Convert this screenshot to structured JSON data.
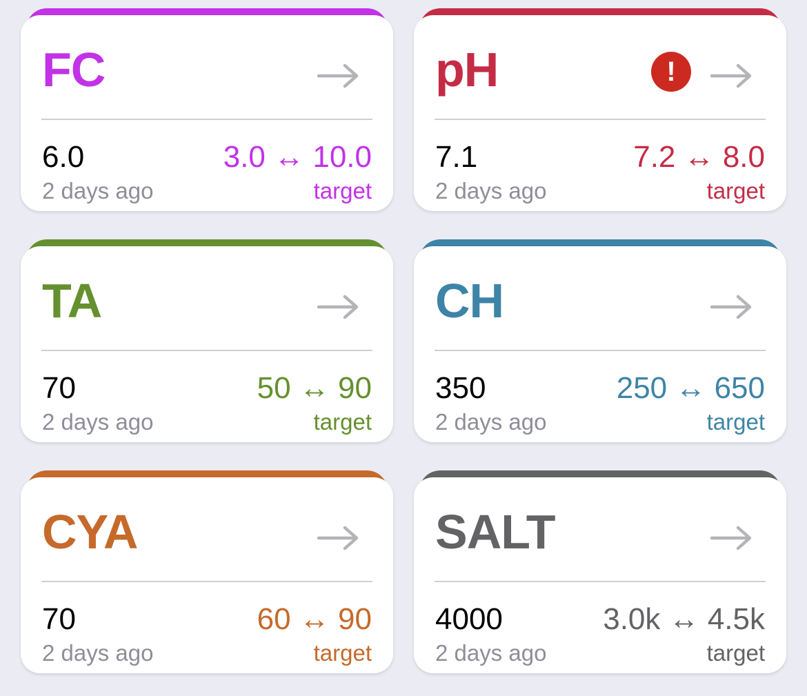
{
  "cards": [
    {
      "label": "FC",
      "color": "#c232e6",
      "value": "6.0",
      "ago": "2 days ago",
      "range": "3.0 ↔ 10.0",
      "target_label": "target",
      "alert": false,
      "arrow_icon": "arrow-right-icon"
    },
    {
      "label": "pH",
      "color": "#c42c45",
      "value": "7.1",
      "ago": "2 days ago",
      "range": "7.2 ↔ 8.0",
      "target_label": "target",
      "alert": true,
      "alert_symbol": "!",
      "alert_icon": "alert-icon",
      "arrow_icon": "arrow-right-icon"
    },
    {
      "label": "TA",
      "color": "#65902f",
      "value": "70",
      "ago": "2 days ago",
      "range": "50 ↔ 90",
      "target_label": "target",
      "alert": false,
      "arrow_icon": "arrow-right-icon"
    },
    {
      "label": "CH",
      "color": "#3e84a6",
      "value": "350",
      "ago": "2 days ago",
      "range": "250 ↔ 650",
      "target_label": "target",
      "alert": false,
      "arrow_icon": "arrow-right-icon"
    },
    {
      "label": "CYA",
      "color": "#c56a2b",
      "value": "70",
      "ago": "2 days ago",
      "range": "60 ↔ 90",
      "target_label": "target",
      "alert": false,
      "arrow_icon": "arrow-right-icon"
    },
    {
      "label": "SALT",
      "color": "#636366",
      "value": "4000",
      "ago": "2 days ago",
      "range": "3.0k ↔ 4.5k",
      "target_label": "target",
      "alert": false,
      "arrow_icon": "arrow-right-icon"
    }
  ]
}
